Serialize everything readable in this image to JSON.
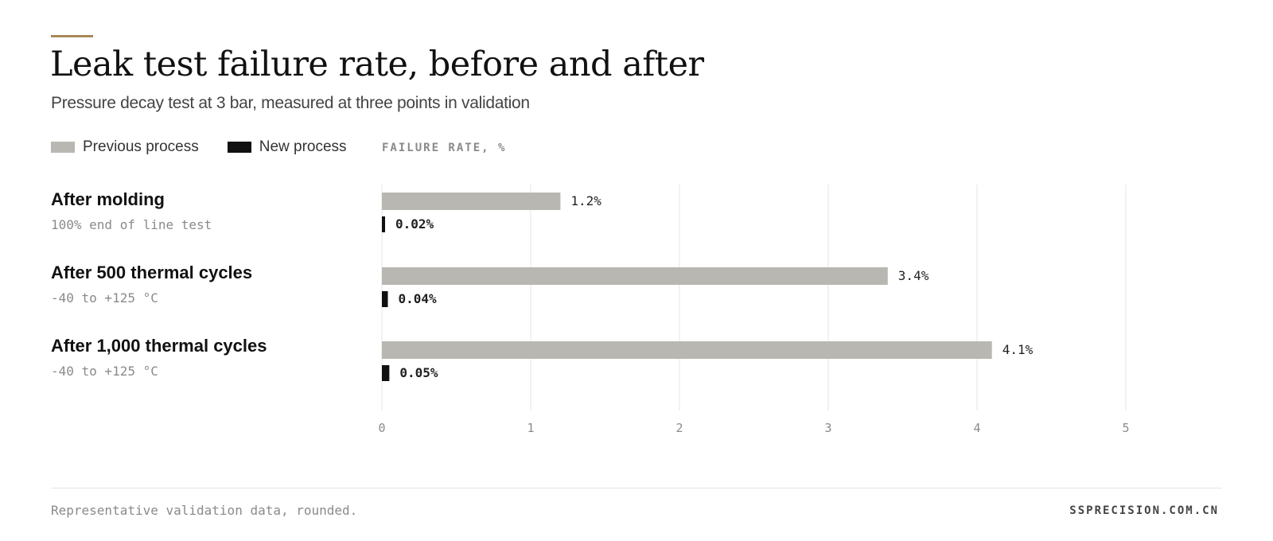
{
  "header": {
    "title": "Leak test failure rate, before and after",
    "subtitle": "Pressure decay test at 3 bar, measured at three points in validation"
  },
  "legend": {
    "previous_label": "Previous process",
    "new_label": "New process",
    "units_label": "FAILURE RATE, %"
  },
  "colors": {
    "accent": "#a88858",
    "previous": "#b8b7b1",
    "new": "#111111",
    "grid": "#e4e4e4"
  },
  "rows": [
    {
      "title": "After molding",
      "sub": "100% end of line test"
    },
    {
      "title": "After 500 thermal cycles",
      "sub": "-40 to +125 °C"
    },
    {
      "title": "After 1,000 thermal cycles",
      "sub": "-40 to +125 °C"
    }
  ],
  "chart_data": {
    "type": "bar",
    "orientation": "horizontal",
    "categories": [
      "After molding",
      "After 500 thermal cycles",
      "After 1,000 thermal cycles"
    ],
    "series": [
      {
        "name": "Previous process",
        "values": [
          1.2,
          3.4,
          4.1
        ],
        "labels": [
          "1.2%",
          "3.4%",
          "4.1%"
        ]
      },
      {
        "name": "New process",
        "values": [
          0.02,
          0.04,
          0.05
        ],
        "labels": [
          "0.02%",
          "0.04%",
          "0.05%"
        ]
      }
    ],
    "xlabel": "FAILURE RATE, %",
    "xlim": [
      0,
      5
    ],
    "xticks": [
      "0",
      "1",
      "2",
      "3",
      "4",
      "5"
    ],
    "grid": true,
    "legend_position": "top-left"
  },
  "footer": {
    "note": "Representative validation data, rounded.",
    "source": "SSPRECISION.COM.CN"
  }
}
